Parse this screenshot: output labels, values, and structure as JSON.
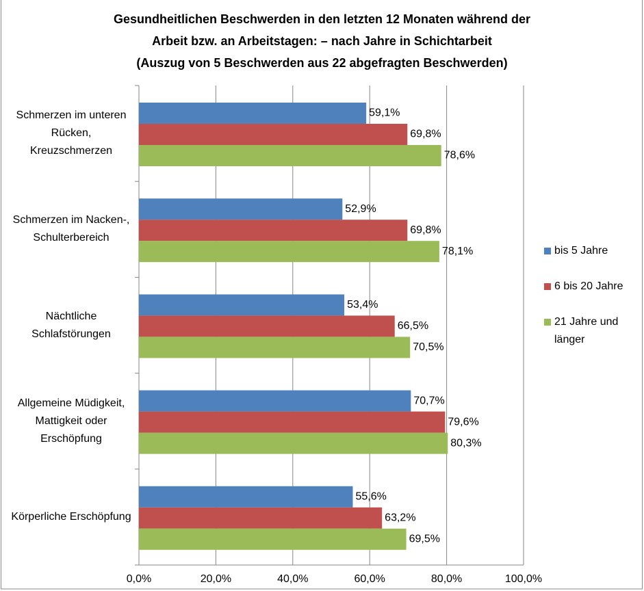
{
  "chart_data": {
    "type": "bar",
    "orientation": "horizontal",
    "title": [
      "Gesundheitlichen Beschwerden in den letzten 12 Monaten während der",
      "Arbeit bzw. an Arbeitstagen: – nach Jahre in Schichtarbeit",
      "(Auszug von 5 Beschwerden aus 22 abgefragten Beschwerden)"
    ],
    "categories": [
      "Schmerzen im unteren Rücken, Kreuzschmerzen",
      "Schmerzen im Nacken-, Schulterbereich",
      "Nächtliche Schlafstörungen",
      "Allgemeine Müdigkeit, Mattigkeit oder Erschöpfung",
      "Körperliche Erschöpfung"
    ],
    "series": [
      {
        "name": "bis 5 Jahre",
        "color": "#4f81bd",
        "values": [
          59.1,
          52.9,
          53.4,
          70.7,
          55.6
        ],
        "value_labels": [
          "59,1%",
          "52,9%",
          "53,4%",
          "70,7%",
          "55,6%"
        ]
      },
      {
        "name": "6 bis 20 Jahre",
        "color": "#c0504d",
        "values": [
          69.8,
          69.8,
          66.5,
          79.6,
          63.2
        ],
        "value_labels": [
          "69,8%",
          "69,8%",
          "66,5%",
          "79,6%",
          "63,2%"
        ]
      },
      {
        "name": "21 Jahre und länger",
        "color": "#9bbb59",
        "values": [
          78.6,
          78.1,
          70.5,
          80.3,
          69.5
        ],
        "value_labels": [
          "78,6%",
          "78,1%",
          "70,5%",
          "80,3%",
          "69,5%"
        ]
      }
    ],
    "xlim": [
      0,
      100
    ],
    "xticks": [
      {
        "value": 0,
        "label": "0,0%"
      },
      {
        "value": 20,
        "label": "20,0%"
      },
      {
        "value": 40,
        "label": "40,0%"
      },
      {
        "value": 60,
        "label": "60,0%"
      },
      {
        "value": 80,
        "label": "80,0%"
      },
      {
        "value": 100,
        "label": "100,0%"
      }
    ],
    "grid": true,
    "legend": "right"
  }
}
